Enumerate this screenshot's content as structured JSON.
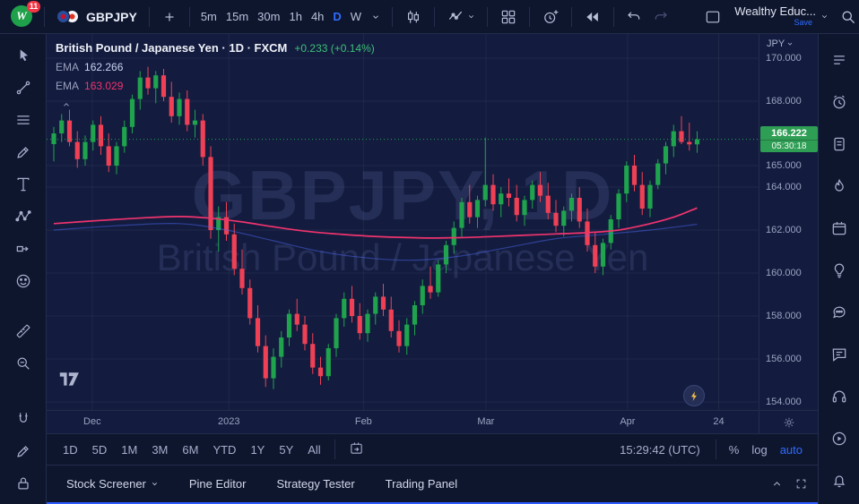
{
  "colors": {
    "accent_blue": "#2f6bff",
    "green": "#1fa34d",
    "red": "#ef4055",
    "ema_fast": "#536dfe",
    "ema_slow": "#f0336e",
    "price_label_bg": "#2f9e55"
  },
  "top_toolbar": {
    "logo_badge": "11",
    "symbol": "GBPJPY",
    "timeframes": [
      "5m",
      "15m",
      "30m",
      "1h",
      "4h",
      "D",
      "W"
    ],
    "active_timeframe": "D",
    "account_name": "Wealthy Educ...",
    "save_label": "Save"
  },
  "chart": {
    "legend": {
      "title": "British Pound / Japanese Yen · 1D · FXCM",
      "change": "+0.233 (+0.14%)",
      "indicators": [
        {
          "name": "EMA",
          "value": "162.266"
        },
        {
          "name": "EMA",
          "value": "163.029"
        }
      ]
    },
    "watermark_line1": "GBPJPY, 1D",
    "watermark_line2": "British Pound / Japanese Yen",
    "price_axis": {
      "currency": "JPY",
      "last_price": "166.222",
      "countdown": "05:30:18"
    }
  },
  "chart_data": {
    "type": "candlestick",
    "title": "British Pound / Japanese Yen",
    "symbol": "GBPJPY",
    "interval": "1D",
    "exchange": "FXCM",
    "price_top": 171.125,
    "price_bottom": 153.625,
    "last_price": 166.222,
    "change": 0.233,
    "change_pct": 0.14,
    "price_ticks": [
      {
        "label": "170.000",
        "value": 170
      },
      {
        "label": "168.000",
        "value": 168
      },
      {
        "label": "165.000",
        "value": 165
      },
      {
        "label": "164.000",
        "value": 164
      },
      {
        "label": "162.000",
        "value": 162
      },
      {
        "label": "160.000",
        "value": 160
      },
      {
        "label": "158.000",
        "value": 158
      },
      {
        "label": "156.000",
        "value": 156
      },
      {
        "label": "154.000",
        "value": 154
      }
    ],
    "time_ticks": [
      {
        "label": "Dec",
        "pos": 0.064
      },
      {
        "label": "2023",
        "pos": 0.256
      },
      {
        "label": "Feb",
        "pos": 0.445
      },
      {
        "label": "Mar",
        "pos": 0.617
      },
      {
        "label": "Apr",
        "pos": 0.816
      },
      {
        "label": "24",
        "pos": 0.944
      }
    ],
    "candles": [
      [
        166.0,
        166.8,
        165.2,
        166.5
      ],
      [
        166.5,
        167.4,
        166.1,
        167.1
      ],
      [
        167.1,
        167.6,
        165.9,
        166.1
      ],
      [
        166.1,
        166.6,
        164.9,
        165.3
      ],
      [
        165.3,
        166.4,
        165.0,
        166.1
      ],
      [
        166.1,
        167.1,
        165.7,
        166.9
      ],
      [
        166.9,
        167.3,
        165.5,
        165.9
      ],
      [
        165.9,
        166.5,
        164.7,
        165.0
      ],
      [
        165.0,
        166.1,
        164.6,
        165.9
      ],
      [
        165.9,
        167.1,
        165.6,
        166.8
      ],
      [
        166.8,
        168.3,
        166.5,
        168.1
      ],
      [
        168.1,
        169.4,
        167.6,
        169.1
      ],
      [
        169.1,
        169.6,
        168.3,
        168.6
      ],
      [
        168.6,
        169.4,
        167.9,
        169.2
      ],
      [
        169.2,
        169.5,
        168.0,
        168.2
      ],
      [
        168.2,
        168.9,
        167.0,
        167.3
      ],
      [
        167.3,
        168.4,
        166.9,
        168.1
      ],
      [
        168.1,
        168.5,
        166.6,
        166.9
      ],
      [
        166.9,
        167.6,
        166.3,
        167.1
      ],
      [
        167.1,
        167.4,
        165.0,
        165.4
      ],
      [
        165.4,
        165.9,
        161.6,
        162.0
      ],
      [
        162.0,
        163.1,
        161.0,
        162.6
      ],
      [
        162.6,
        163.3,
        161.5,
        161.8
      ],
      [
        161.8,
        162.3,
        159.9,
        160.2
      ],
      [
        160.2,
        161.1,
        159.0,
        159.3
      ],
      [
        159.3,
        159.7,
        157.6,
        157.9
      ],
      [
        157.9,
        158.5,
        156.3,
        156.6
      ],
      [
        156.6,
        157.1,
        154.7,
        155.1
      ],
      [
        155.1,
        156.5,
        154.6,
        156.1
      ],
      [
        156.1,
        157.3,
        155.6,
        157.0
      ],
      [
        157.0,
        158.3,
        156.6,
        158.1
      ],
      [
        158.1,
        158.8,
        157.3,
        157.6
      ],
      [
        157.6,
        158.0,
        156.4,
        156.7
      ],
      [
        156.7,
        157.2,
        155.3,
        155.6
      ],
      [
        155.6,
        156.1,
        154.8,
        155.2
      ],
      [
        155.2,
        156.7,
        155.0,
        156.5
      ],
      [
        156.5,
        158.1,
        156.1,
        157.9
      ],
      [
        157.9,
        159.1,
        157.5,
        158.8
      ],
      [
        158.8,
        159.4,
        157.7,
        158.0
      ],
      [
        158.0,
        158.6,
        156.9,
        157.2
      ],
      [
        157.2,
        158.3,
        156.8,
        158.1
      ],
      [
        158.1,
        159.1,
        157.6,
        158.9
      ],
      [
        158.9,
        159.5,
        158.0,
        158.3
      ],
      [
        158.3,
        158.9,
        157.0,
        157.3
      ],
      [
        157.3,
        157.8,
        156.3,
        156.6
      ],
      [
        156.6,
        157.9,
        156.2,
        157.6
      ],
      [
        157.6,
        158.7,
        157.1,
        158.5
      ],
      [
        158.5,
        159.7,
        158.1,
        159.4
      ],
      [
        159.4,
        160.3,
        158.8,
        159.1
      ],
      [
        159.1,
        160.6,
        158.9,
        160.4
      ],
      [
        160.4,
        161.5,
        160.0,
        161.3
      ],
      [
        161.3,
        162.4,
        160.9,
        162.1
      ],
      [
        162.1,
        163.5,
        161.7,
        163.3
      ],
      [
        163.3,
        164.1,
        162.3,
        162.6
      ],
      [
        162.6,
        163.6,
        162.1,
        163.4
      ],
      [
        163.4,
        166.3,
        163.1,
        164.1
      ],
      [
        164.1,
        164.6,
        162.9,
        163.2
      ],
      [
        163.2,
        164.0,
        162.6,
        163.7
      ],
      [
        163.7,
        164.4,
        163.1,
        163.5
      ],
      [
        163.5,
        164.1,
        162.4,
        162.7
      ],
      [
        162.7,
        163.6,
        162.2,
        163.4
      ],
      [
        163.4,
        164.3,
        163.0,
        164.1
      ],
      [
        164.1,
        164.7,
        163.3,
        163.6
      ],
      [
        163.6,
        164.2,
        162.5,
        162.8
      ],
      [
        162.8,
        163.4,
        161.9,
        162.2
      ],
      [
        162.2,
        163.1,
        161.7,
        162.9
      ],
      [
        162.9,
        163.7,
        162.4,
        163.5
      ],
      [
        163.5,
        164.0,
        162.1,
        162.4
      ],
      [
        162.4,
        163.0,
        161.0,
        161.3
      ],
      [
        161.3,
        161.9,
        160.0,
        160.3
      ],
      [
        160.3,
        161.6,
        159.9,
        161.4
      ],
      [
        161.4,
        162.7,
        161.1,
        162.5
      ],
      [
        162.5,
        163.9,
        162.1,
        163.7
      ],
      [
        163.7,
        165.2,
        163.3,
        165.0
      ],
      [
        165.0,
        165.5,
        163.8,
        164.1
      ],
      [
        164.1,
        164.7,
        162.7,
        163.0
      ],
      [
        163.0,
        164.3,
        162.6,
        164.1
      ],
      [
        164.1,
        165.3,
        163.9,
        165.1
      ],
      [
        165.1,
        166.1,
        164.6,
        165.9
      ],
      [
        165.9,
        166.9,
        165.4,
        166.6
      ],
      [
        166.6,
        167.3,
        166.0,
        166.1
      ],
      [
        166.1,
        167.0,
        165.7,
        165.989
      ],
      [
        165.989,
        166.6,
        165.6,
        166.222
      ]
    ],
    "emas": [
      {
        "name": "EMA",
        "last": 162.266,
        "color_key": "ema_fast",
        "points": [
          [
            0,
            162.0
          ],
          [
            8,
            162.2
          ],
          [
            16,
            162.3
          ],
          [
            22,
            162.0
          ],
          [
            28,
            161.5
          ],
          [
            34,
            161.0
          ],
          [
            40,
            160.7
          ],
          [
            46,
            160.6
          ],
          [
            52,
            160.8
          ],
          [
            58,
            161.2
          ],
          [
            64,
            161.6
          ],
          [
            70,
            161.8
          ],
          [
            76,
            162.0
          ],
          [
            82,
            162.27
          ]
        ]
      },
      {
        "name": "EMA",
        "last": 163.029,
        "color_key": "ema_slow",
        "points": [
          [
            0,
            162.3
          ],
          [
            6,
            162.45
          ],
          [
            12,
            162.58
          ],
          [
            16,
            162.63
          ],
          [
            20,
            162.55
          ],
          [
            24,
            162.38
          ],
          [
            28,
            162.15
          ],
          [
            32,
            161.95
          ],
          [
            36,
            161.82
          ],
          [
            40,
            161.72
          ],
          [
            44,
            161.66
          ],
          [
            48,
            161.63
          ],
          [
            52,
            161.65
          ],
          [
            56,
            161.7
          ],
          [
            60,
            161.76
          ],
          [
            64,
            161.82
          ],
          [
            68,
            161.88
          ],
          [
            72,
            162.0
          ],
          [
            76,
            162.3
          ],
          [
            79,
            162.6
          ],
          [
            82,
            163.03
          ]
        ]
      }
    ]
  },
  "bottom_toolbar": {
    "ranges": [
      "1D",
      "5D",
      "1M",
      "3M",
      "6M",
      "YTD",
      "1Y",
      "5Y",
      "All"
    ],
    "clock": "15:29:42 (UTC)",
    "scale_percent": "%",
    "scale_log": "log",
    "scale_auto": "auto"
  },
  "bottom_tabs": {
    "screener": "Stock Screener",
    "pine": "Pine Editor",
    "strategy": "Strategy Tester",
    "trading": "Trading Panel"
  },
  "left_toolbar_icons": [
    "cursor",
    "trend-line",
    "fib-lines",
    "brush",
    "text",
    "xabcd-pattern",
    "forecast",
    "emoji",
    "ruler",
    "zoom",
    "magnet",
    "draw",
    "lock",
    "eye"
  ],
  "right_sidebar_icons": [
    "watchlist",
    "alerts",
    "journal",
    "hotlists",
    "calendar",
    "ideas",
    "chat-cloud",
    "chat",
    "support",
    "tutorials",
    "notifications"
  ]
}
